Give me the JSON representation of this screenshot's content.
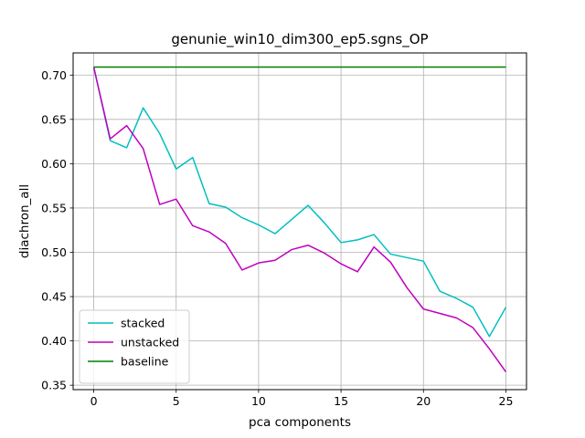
{
  "chart_data": {
    "type": "line",
    "title": "genunie_win10_dim300_ep5.sgns_OP",
    "xlabel": "pca components",
    "ylabel": "diachron_all",
    "xlim": [
      -1.25,
      26.25
    ],
    "ylim": [
      0.345,
      0.725
    ],
    "xticks": [
      0,
      5,
      10,
      15,
      20,
      25
    ],
    "yticks": [
      0.35,
      0.4,
      0.45,
      0.5,
      0.55,
      0.6,
      0.65,
      0.7
    ],
    "grid": true,
    "legend_position": "lower-left",
    "x": [
      0,
      1,
      2,
      3,
      4,
      5,
      6,
      7,
      8,
      9,
      10,
      11,
      12,
      13,
      14,
      15,
      16,
      17,
      18,
      19,
      20,
      21,
      22,
      23,
      24,
      25
    ],
    "series": [
      {
        "name": "stacked",
        "color": "#00bfbf",
        "values": [
          0.709,
          0.626,
          0.618,
          0.663,
          0.634,
          0.594,
          0.607,
          0.555,
          0.551,
          0.539,
          0.531,
          0.521,
          0.537,
          0.553,
          0.533,
          0.511,
          0.514,
          0.52,
          0.498,
          0.494,
          0.49,
          0.456,
          0.448,
          0.438,
          0.405,
          0.438
        ]
      },
      {
        "name": "unstacked",
        "color": "#bf00bf",
        "values": [
          0.709,
          0.628,
          0.643,
          0.617,
          0.554,
          0.56,
          0.53,
          0.523,
          0.51,
          0.48,
          0.488,
          0.491,
          0.503,
          0.508,
          0.499,
          0.487,
          0.478,
          0.506,
          0.489,
          0.46,
          0.436,
          0.431,
          0.426,
          0.415,
          0.391,
          0.365
        ]
      },
      {
        "name": "baseline",
        "color": "#008000",
        "values": [
          0.709,
          0.709,
          0.709,
          0.709,
          0.709,
          0.709,
          0.709,
          0.709,
          0.709,
          0.709,
          0.709,
          0.709,
          0.709,
          0.709,
          0.709,
          0.709,
          0.709,
          0.709,
          0.709,
          0.709,
          0.709,
          0.709,
          0.709,
          0.709,
          0.709,
          0.709
        ]
      }
    ]
  }
}
